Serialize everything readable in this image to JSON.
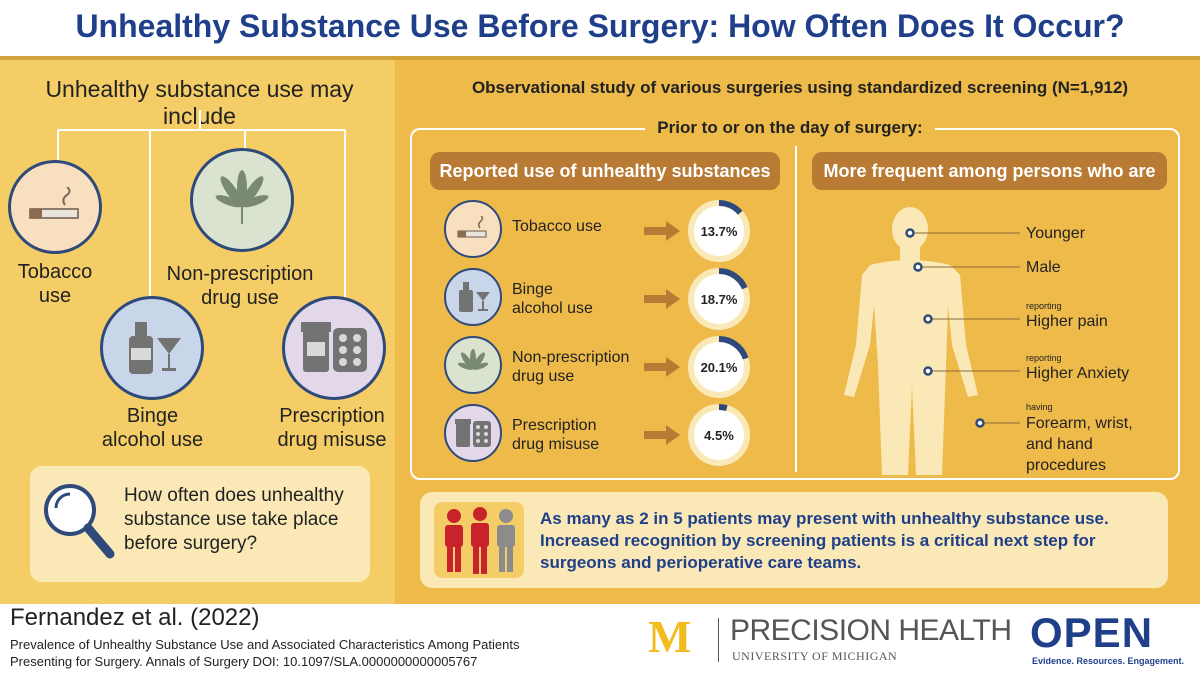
{
  "title": "Unhealthy Substance Use Before Surgery: How Often Does It Occur?",
  "left": {
    "heading": "Unhealthy substance use may include",
    "items": [
      {
        "label1": "Tobacco",
        "label2": "use"
      },
      {
        "label1": "Non-prescription",
        "label2": "drug use"
      },
      {
        "label1": "Binge",
        "label2": "alcohol use"
      },
      {
        "label1": "Prescription",
        "label2": "drug misuse"
      }
    ],
    "question": "How often does unhealthy substance use take place before surgery?"
  },
  "right": {
    "study": "Observational study of various surgeries using standardized screening (N=1,912)",
    "prior": "Prior to or on the day of surgery:",
    "reported_header": "Reported use of unhealthy substances",
    "frequent_header": "More frequent among persons who are",
    "stats": [
      {
        "label1": "Tobacco use",
        "label2": "",
        "value": 13.7,
        "text": "13.7%"
      },
      {
        "label1": "Binge",
        "label2": "alcohol use",
        "value": 18.7,
        "text": "18.7%"
      },
      {
        "label1": "Non-prescription",
        "label2": "drug use",
        "value": 20.1,
        "text": "20.1%"
      },
      {
        "label1": "Prescription",
        "label2": "drug misuse",
        "value": 4.5,
        "text": "4.5%"
      }
    ],
    "traits": [
      {
        "pre": "",
        "text": "Younger"
      },
      {
        "pre": "",
        "text": "Male"
      },
      {
        "pre": "reporting",
        "text": "Higher pain"
      },
      {
        "pre": "reporting",
        "text": "Higher Anxiety"
      },
      {
        "pre": "having",
        "text": "Forearm, wrist, and hand procedures"
      }
    ],
    "conclusion": "As many as 2 in 5 patients may present with unhealthy substance use. Increased recognition by screening patients is a critical next step for surgeons and perioperative care teams."
  },
  "footer": {
    "citation_title": "Fernandez et al. (2022)",
    "citation_text": "Prevalence of Unhealthy Substance Use and Associated Characteristics Among Patients Presenting for Surgery. Annals of Surgery DOI: 10.1097/SLA.0000000000005767",
    "logo_m": "M",
    "ph_title": "PRECISION HEALTH",
    "ph_sub": "UNIVERSITY OF MICHIGAN",
    "open_title": "OPEN",
    "open_sub": "Evidence. Resources. Engagement."
  },
  "colors": {
    "navy": "#1f3f8a",
    "gold": "#f4cd67",
    "amber": "#eebb4a",
    "brown": "#b97a34",
    "red": "#c8232c",
    "circle": "#2f4a7a"
  }
}
